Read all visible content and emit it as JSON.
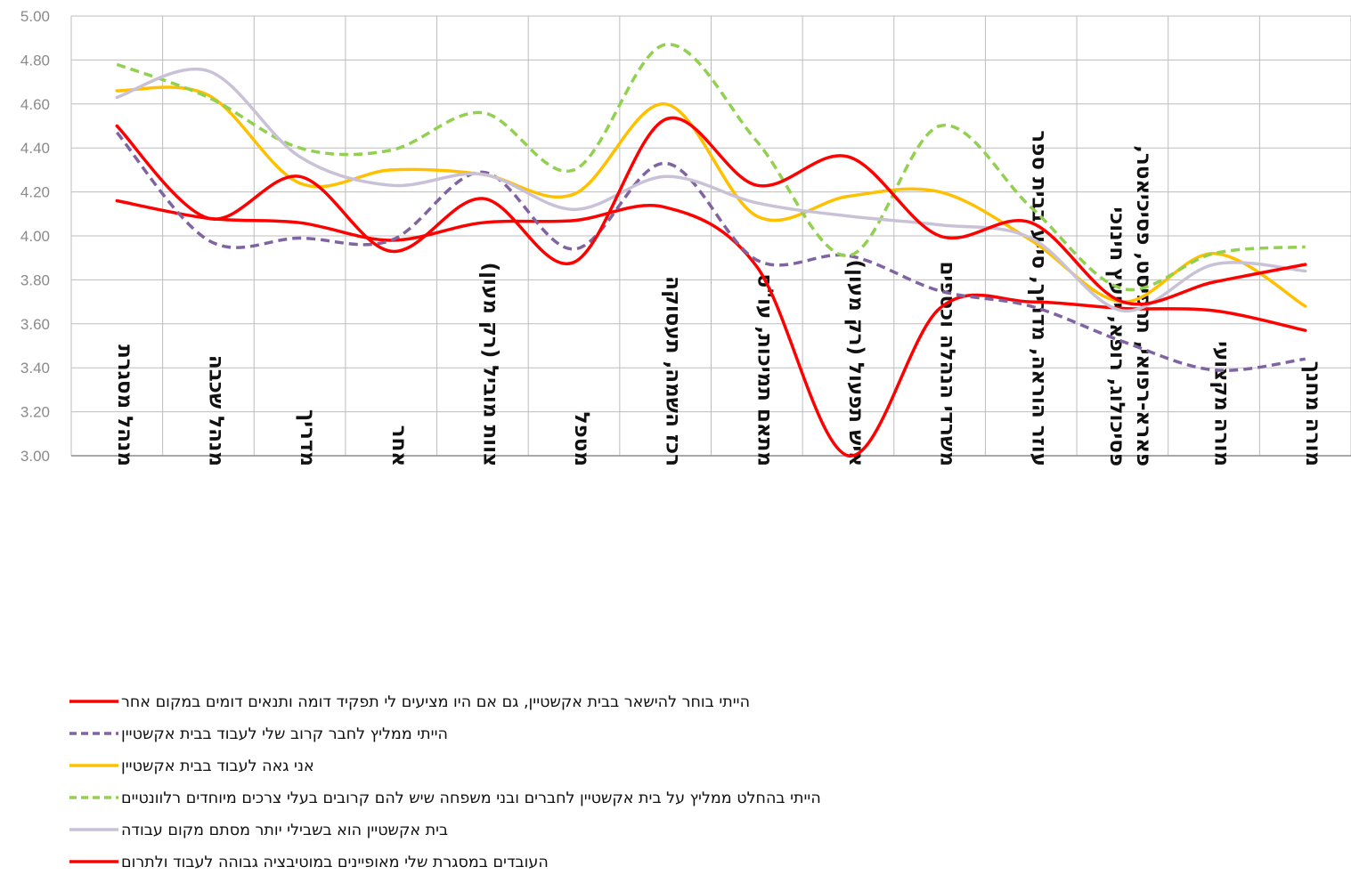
{
  "chart_data": {
    "type": "line",
    "ylim": [
      3.0,
      5.0
    ],
    "y_ticks": [
      "3.00",
      "3.20",
      "3.40",
      "3.60",
      "3.80",
      "4.00",
      "4.20",
      "4.40",
      "4.60",
      "4.80",
      "5.00"
    ],
    "grid": true,
    "legend_position": "bottom-left",
    "categories": [
      [
        "מנהל מסגרת"
      ],
      [
        "מנהל שכבה"
      ],
      [
        "מדריך"
      ],
      [
        "אחר"
      ],
      [
        "צוות מוביל (רק מעון)"
      ],
      [
        "מטפל"
      ],
      [
        "רכז השמה, תעסוקה"
      ],
      [
        "מתאם תמיכות, עו\"ס"
      ],
      [
        "איש תפעול (רק מעון)"
      ],
      [
        "משרדי הנהלה וכספים"
      ],
      [
        "עוזר הוראה, מדריך, סייע בבית ספר"
      ],
      [
        "פארא-רפואי, תרפיסט, פסיכיאטר,",
        "פסיכולוג, רופא, יועץ חינוכי"
      ],
      [
        "מורה מקצועי"
      ],
      [
        "מורה מחנך"
      ]
    ],
    "series": [
      {
        "name": "הייתי בוחר להישאר בבית אקשטיין, גם אם היו מציעים לי תפקיד דומה ותנאים דומים במקום אחר",
        "color": "#ff0000",
        "dash": "solid",
        "values": [
          4.16,
          4.08,
          4.06,
          3.98,
          4.06,
          4.07,
          4.13,
          3.86,
          3.0,
          3.67,
          3.7,
          3.67,
          3.66,
          3.57
        ]
      },
      {
        "name": "הייתי ממליץ לחבר קרוב שלי לעבוד בבית אקשטיין",
        "color": "#8064a2",
        "dash": "dashed",
        "values": [
          4.47,
          3.98,
          3.99,
          3.98,
          4.29,
          3.94,
          4.33,
          3.89,
          3.91,
          3.75,
          3.68,
          3.52,
          3.39,
          3.44
        ]
      },
      {
        "name": "אני גאה לעבוד בבית אקשטיין",
        "color": "#ffc000",
        "dash": "solid",
        "values": [
          4.66,
          4.64,
          4.24,
          4.3,
          4.28,
          4.19,
          4.6,
          4.09,
          4.18,
          4.2,
          3.98,
          3.7,
          3.92,
          3.68
        ]
      },
      {
        "name": "הייתי בהחלט ממליץ על בית אקשטיין לחברים ובני משפחה שיש להם קרובים בעלי צרכים מיוחדים רלוונטיים",
        "color": "#92d050",
        "dash": "dashed",
        "values": [
          4.78,
          4.63,
          4.4,
          4.39,
          4.56,
          4.3,
          4.87,
          4.43,
          3.91,
          4.5,
          4.13,
          3.76,
          3.92,
          3.95
        ]
      },
      {
        "name": "בית אקשטיין הוא בשבילי יותר מסתם מקום עבודה",
        "color": "#c9c2d6",
        "dash": "solid",
        "values": [
          4.63,
          4.75,
          4.36,
          4.23,
          4.28,
          4.12,
          4.27,
          4.15,
          4.09,
          4.05,
          3.99,
          3.66,
          3.87,
          3.84
        ]
      },
      {
        "name": "העובדים במסגרת שלי מאופיינים במוטיבציה גבוהה לעבוד ולתרום",
        "color": "#ff0000",
        "dash": "solid",
        "values": [
          4.5,
          4.08,
          4.27,
          3.93,
          4.17,
          3.88,
          4.53,
          4.23,
          4.36,
          4.0,
          4.06,
          3.7,
          3.79,
          3.87
        ]
      }
    ]
  }
}
